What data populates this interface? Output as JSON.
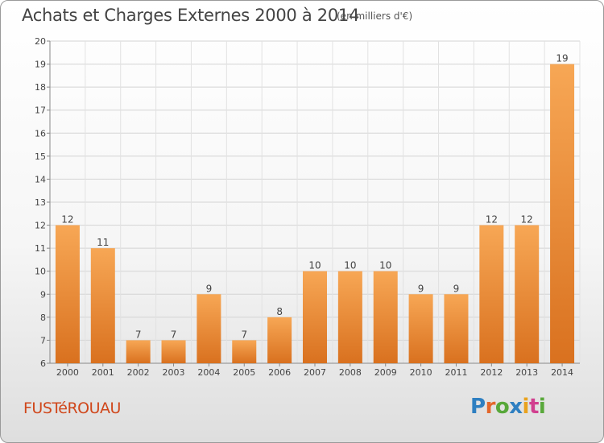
{
  "chart_data": {
    "type": "bar",
    "title": "Achats et Charges Externes 2000 à 2014",
    "subtitle": "(en milliers d'€)",
    "categories": [
      "2000",
      "2001",
      "2002",
      "2003",
      "2004",
      "2005",
      "2006",
      "2007",
      "2008",
      "2009",
      "2010",
      "2011",
      "2012",
      "2013",
      "2014"
    ],
    "values": [
      12,
      11,
      7,
      7,
      9,
      7,
      8,
      10,
      10,
      10,
      9,
      9,
      12,
      12,
      19
    ],
    "ylim": [
      6,
      20
    ],
    "yticks": [
      6,
      7,
      8,
      9,
      10,
      11,
      12,
      13,
      14,
      15,
      16,
      17,
      18,
      19,
      20
    ],
    "grid": true,
    "bar_color_light": "#f7a755",
    "bar_color_dark": "#d9711f"
  },
  "footer": {
    "commune": "FUSTéROUAU",
    "brand": "Proxiti"
  },
  "brand_colors": [
    "#2e7fc1",
    "#e3672b",
    "#58a83a",
    "#2e7fc1",
    "#e9a21e",
    "#d13f8f",
    "#58a83a"
  ]
}
